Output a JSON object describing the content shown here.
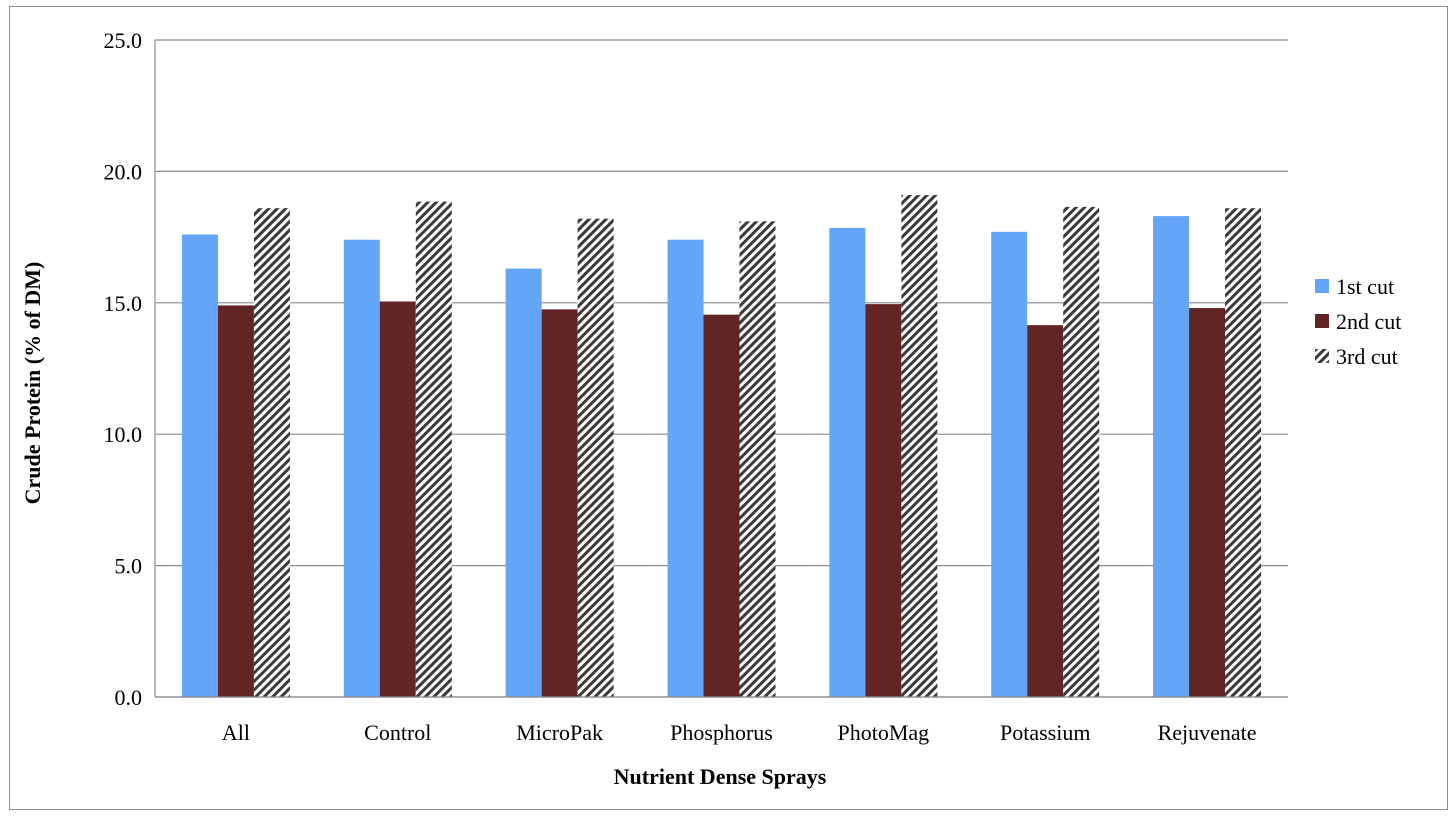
{
  "chart_data": {
    "type": "bar",
    "title": "",
    "xlabel": "Nutrient Dense Sprays",
    "ylabel": "Crude Protein (% of DM)",
    "ylim": [
      0,
      25
    ],
    "yticks": [
      "0.0",
      "5.0",
      "10.0",
      "15.0",
      "20.0",
      "25.0"
    ],
    "grid": true,
    "legend_position": "right",
    "categories": [
      "All",
      "Control",
      "MicroPak",
      "Phosphorus",
      "PhotoMag",
      "Potassium",
      "Rejuvenate"
    ],
    "series": [
      {
        "name": "1st cut",
        "color": "#64a5f7",
        "pattern": "solid",
        "values": [
          17.6,
          17.4,
          16.3,
          17.4,
          17.85,
          17.7,
          18.3
        ]
      },
      {
        "name": "2nd cut",
        "color": "#632425",
        "pattern": "solid",
        "values": [
          14.9,
          15.05,
          14.75,
          14.55,
          14.95,
          14.15,
          14.8
        ]
      },
      {
        "name": "3rd cut",
        "color": "#444444",
        "pattern": "diagonal-hatch",
        "values": [
          18.6,
          18.85,
          18.2,
          18.1,
          19.1,
          18.65,
          18.6
        ]
      }
    ]
  }
}
